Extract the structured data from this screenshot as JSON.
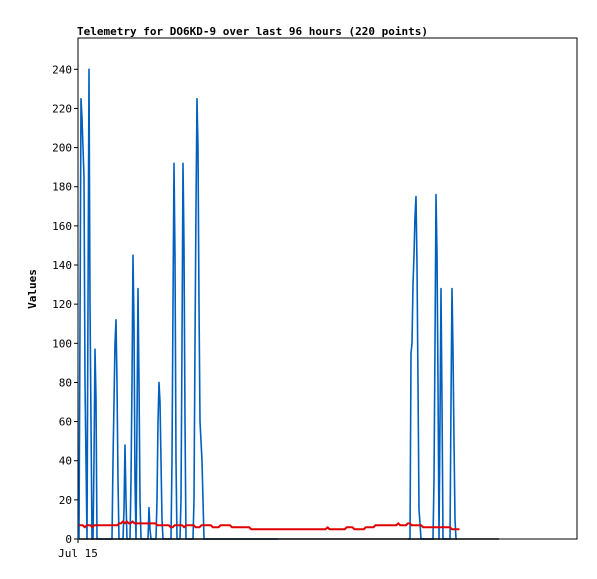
{
  "chart_data": {
    "type": "line",
    "title": "Telemetry for DO6KD-9 over last 96 hours (220 points)",
    "ylabel": "Values",
    "xlabel": "",
    "x_tick_labels": [
      "Jul 15"
    ],
    "ylim": [
      0,
      256
    ],
    "yticks": [
      0,
      20,
      40,
      60,
      80,
      100,
      120,
      140,
      160,
      180,
      200,
      220,
      240
    ],
    "grid": false,
    "legend": "none",
    "series": [
      {
        "color": "#0060c0",
        "values": [
          0,
          110,
          225,
          215,
          200,
          185,
          80,
          40,
          0,
          120,
          240,
          120,
          60,
          0,
          0,
          40,
          97,
          72,
          0,
          0,
          0,
          0,
          0,
          0,
          0,
          0,
          0,
          0,
          0,
          0,
          0,
          0,
          0,
          0,
          40,
          70,
          100,
          112,
          80,
          30,
          0,
          0,
          0,
          0,
          0,
          15,
          48,
          20,
          0,
          0,
          0,
          0,
          30,
          80,
          145,
          110,
          30,
          0,
          60,
          128,
          80,
          20,
          0,
          0,
          0,
          0,
          0,
          0,
          0,
          0,
          16,
          5,
          0,
          0,
          0,
          0,
          0,
          0,
          20,
          60,
          80,
          70,
          40,
          10,
          0,
          0,
          0,
          0,
          0,
          0,
          0,
          0,
          0,
          40,
          120,
          192,
          145,
          40,
          0,
          0,
          0,
          0,
          20,
          100,
          192,
          150,
          60,
          0,
          0,
          0,
          0,
          0,
          0,
          0,
          0,
          20,
          100,
          170,
          225,
          200,
          120,
          60,
          50,
          40,
          20,
          0,
          0,
          0,
          0,
          0,
          0,
          0,
          0,
          0,
          0,
          0,
          0,
          0,
          0,
          0,
          0,
          0,
          0,
          0,
          0,
          0,
          0,
          0,
          0,
          0,
          0,
          0,
          0,
          0,
          0,
          0,
          0,
          0,
          0,
          0,
          0,
          0,
          0,
          0,
          0,
          0,
          0,
          0,
          0,
          0,
          0,
          0,
          0,
          0,
          0,
          0,
          0,
          0,
          0,
          0,
          0,
          0,
          0,
          0,
          0,
          0,
          0,
          0,
          0,
          0,
          0,
          0,
          0,
          0,
          0,
          0,
          0,
          0,
          0,
          0
        ]
      },
      {
        "color": "#0060c0",
        "values": [
          0,
          0,
          0,
          95,
          100,
          130,
          145,
          165,
          175,
          140,
          80,
          15,
          8,
          0,
          0,
          0,
          0,
          0,
          0,
          0,
          0,
          0,
          0,
          0,
          0,
          0,
          30,
          100,
          176,
          146,
          80,
          0,
          60,
          128,
          70,
          0,
          0,
          0,
          0,
          0,
          0,
          0,
          0,
          70,
          128,
          96,
          50,
          10,
          0,
          0
        ]
      },
      {
        "color": "#e00000",
        "values": [
          7,
          7,
          7,
          6,
          7,
          7,
          7,
          6,
          7,
          7,
          7,
          7,
          7,
          7,
          7,
          7,
          7,
          7,
          7,
          7,
          7,
          8,
          8,
          9,
          8,
          9,
          8,
          8,
          9,
          8,
          8,
          8,
          8,
          8,
          8,
          8,
          8,
          8,
          8,
          8,
          8,
          7,
          7,
          7,
          7,
          7,
          7,
          7,
          6,
          6,
          7,
          7,
          7,
          7,
          7,
          6,
          7,
          7,
          7,
          7,
          7,
          6,
          6,
          6,
          7,
          7,
          7,
          7,
          7,
          7,
          6,
          6,
          6,
          6,
          7,
          7,
          7,
          7,
          7,
          7,
          6,
          6,
          6,
          6,
          6,
          6,
          6,
          6,
          6,
          6,
          5,
          5,
          5,
          5,
          5,
          5,
          5,
          5,
          5,
          5,
          5,
          5,
          5,
          5,
          5,
          5,
          5,
          5,
          5,
          5,
          5,
          5,
          5,
          5,
          5,
          5,
          5,
          5,
          5,
          5,
          5,
          5,
          5,
          5,
          5,
          5,
          5,
          5,
          5,
          5,
          6,
          5,
          5,
          5,
          5,
          5,
          5,
          5,
          5,
          5,
          6,
          6,
          6,
          6,
          5,
          5,
          5,
          5,
          5,
          5,
          6,
          6,
          6,
          6,
          6,
          7,
          7,
          7,
          7,
          7,
          7,
          7,
          7,
          7,
          7,
          7,
          7,
          8,
          7,
          7,
          7,
          7,
          8,
          8,
          7,
          7,
          7,
          7,
          7,
          7,
          6,
          6,
          6,
          6,
          6,
          6,
          6,
          6,
          6,
          6,
          6,
          6,
          6,
          6,
          6,
          5,
          5,
          5,
          5,
          5
        ]
      },
      {
        "color": "#000000",
        "values": [
          0,
          0
        ]
      }
    ]
  }
}
